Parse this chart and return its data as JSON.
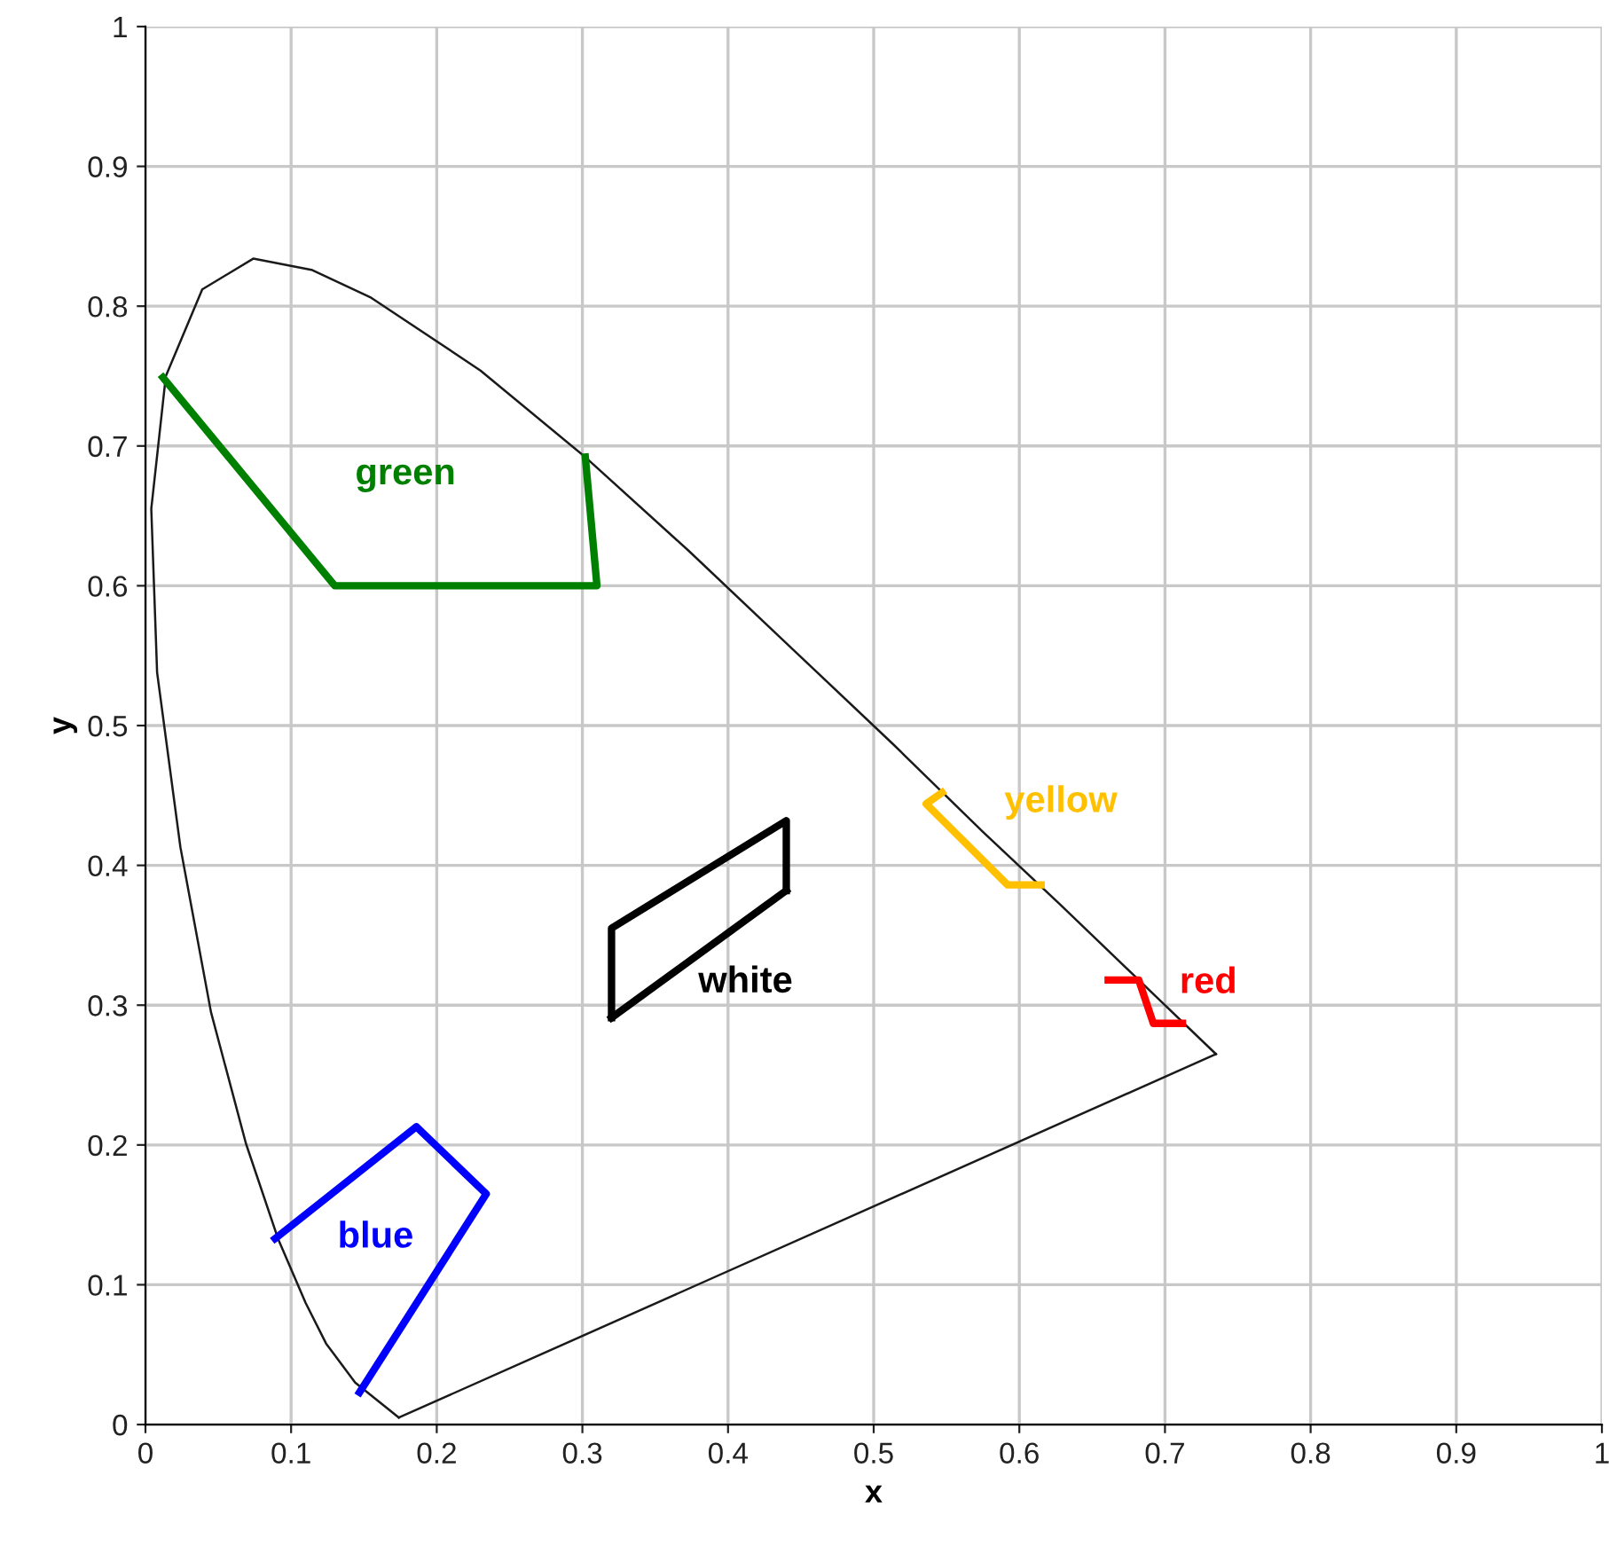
{
  "chart_data": {
    "type": "line",
    "xlabel": "x",
    "ylabel": "y",
    "xlim": [
      0,
      1
    ],
    "ylim": [
      0,
      1
    ],
    "xticks": [
      0,
      0.1,
      0.2,
      0.3,
      0.4,
      0.5,
      0.6,
      0.7,
      0.8,
      0.9,
      1
    ],
    "yticks": [
      0,
      0.1,
      0.2,
      0.3,
      0.4,
      0.5,
      0.6,
      0.7,
      0.8,
      0.9,
      1
    ],
    "grid": true,
    "legend": false,
    "marker": "none",
    "line_style": "solid",
    "series": [
      {
        "color": "#1a1a1a",
        "x": [
          0.174,
          0.144,
          0.124,
          0.11,
          0.091,
          0.069,
          0.045,
          0.024,
          0.008,
          0.004,
          0.014,
          0.039,
          0.074,
          0.114,
          0.155,
          0.23,
          0.302,
          0.373,
          0.444,
          0.513,
          0.575,
          0.627,
          0.692,
          0.735
        ],
        "values": [
          0.005,
          0.03,
          0.058,
          0.087,
          0.133,
          0.201,
          0.295,
          0.413,
          0.538,
          0.655,
          0.75,
          0.812,
          0.834,
          0.826,
          0.806,
          0.754,
          0.692,
          0.625,
          0.555,
          0.487,
          0.424,
          0.373,
          0.308,
          0.265
        ]
      },
      {
        "color": "#1a1a1a",
        "x": [
          0.735,
          0.174
        ],
        "values": [
          0.265,
          0.005
        ]
      },
      {
        "name": "green",
        "color": "#008000",
        "x": [
          0.012,
          0.13,
          0.31,
          0.302
        ],
        "values": [
          0.749,
          0.6,
          0.6,
          0.692
        ]
      },
      {
        "name": "yellow",
        "color": "#ffc000",
        "x": [
          0.547,
          0.536,
          0.592,
          0.615
        ],
        "values": [
          0.452,
          0.444,
          0.386,
          0.386
        ]
      },
      {
        "name": "red",
        "color": "#ff0000",
        "x": [
          0.661,
          0.682,
          0.692,
          0.712
        ],
        "values": [
          0.318,
          0.318,
          0.287,
          0.287
        ]
      },
      {
        "name": "white",
        "color": "#000000",
        "x": [
          0.32,
          0.32,
          0.44,
          0.44
        ],
        "values": [
          0.291,
          0.355,
          0.432,
          0.382
        ]
      },
      {
        "name": "blue",
        "color": "#0000ff",
        "x": [
          0.089,
          0.186,
          0.234,
          0.147
        ],
        "values": [
          0.133,
          0.213,
          0.165,
          0.023
        ]
      },
      {
        "color": "#000000",
        "x": [
          0.44,
          0.32
        ],
        "values": [
          0.382,
          0.291
        ],
        "type": "line"
      }
    ]
  }
}
